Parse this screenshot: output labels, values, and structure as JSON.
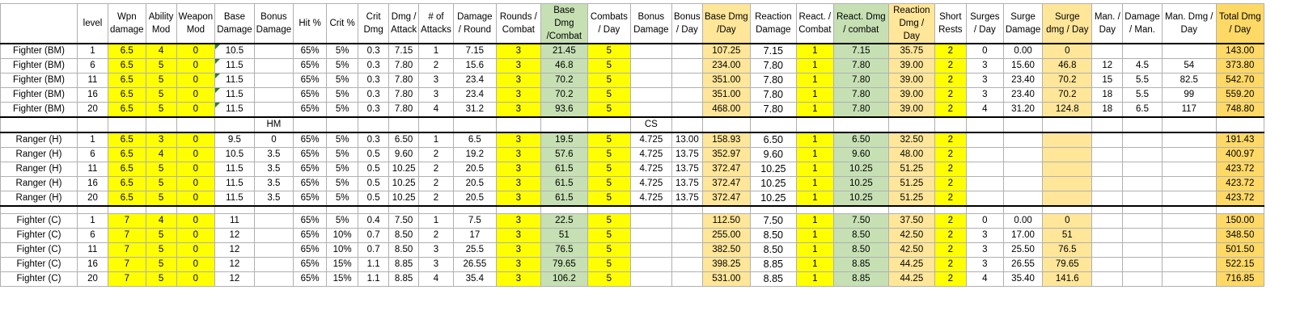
{
  "headers": [
    "",
    "level",
    "Wpn damage",
    "Ability Mod",
    "Weapon Mod",
    "Base Damage",
    "Bonus Damage",
    "Hit %",
    "Crit %",
    "Crit Dmg",
    "Dmg / Attack",
    "# of Attacks",
    "Damage / Round",
    "Rounds / Combat",
    "Base Dmg /Combat",
    "Combats / Day",
    "Bonus Damage",
    "Bonus / Day",
    "Base Dmg /Day",
    "Reaction Damage",
    "React. / Combat",
    "React. Dmg / combat",
    "Reaction Dmg / Day",
    "Short Rests",
    "Surges / Day",
    "Surge Damage",
    "Surge dmg / Day",
    "Man. / Day",
    "Damage / Man.",
    "Man. Dmg / Day",
    "Total Dmg / Day"
  ],
  "colors": {
    "yellow": "#ffff00",
    "green": "#c6e0b4",
    "orange": "#ffe699",
    "gold": "#ffd966"
  },
  "fighter_bm": [
    [
      "Fighter (BM)",
      "1",
      "6.5",
      "4",
      "0",
      "10.5",
      "",
      "65%",
      "5%",
      "0.3",
      "7.15",
      "1",
      "7.15",
      "3",
      "21.45",
      "5",
      "",
      "",
      "107.25",
      "7.15",
      "1",
      "7.15",
      "35.75",
      "2",
      "0",
      "0.00",
      "0",
      "",
      "",
      "",
      "143.00"
    ],
    [
      "Fighter (BM)",
      "6",
      "6.5",
      "5",
      "0",
      "11.5",
      "",
      "65%",
      "5%",
      "0.3",
      "7.80",
      "2",
      "15.6",
      "3",
      "46.8",
      "5",
      "",
      "",
      "234.00",
      "7.80",
      "1",
      "7.80",
      "39.00",
      "2",
      "3",
      "15.60",
      "46.8",
      "12",
      "4.5",
      "54",
      "373.80"
    ],
    [
      "Fighter (BM)",
      "11",
      "6.5",
      "5",
      "0",
      "11.5",
      "",
      "65%",
      "5%",
      "0.3",
      "7.80",
      "3",
      "23.4",
      "3",
      "70.2",
      "5",
      "",
      "",
      "351.00",
      "7.80",
      "1",
      "7.80",
      "39.00",
      "2",
      "3",
      "23.40",
      "70.2",
      "15",
      "5.5",
      "82.5",
      "542.70"
    ],
    [
      "Fighter (BM)",
      "16",
      "6.5",
      "5",
      "0",
      "11.5",
      "",
      "65%",
      "5%",
      "0.3",
      "7.80",
      "3",
      "23.4",
      "3",
      "70.2",
      "5",
      "",
      "",
      "351.00",
      "7.80",
      "1",
      "7.80",
      "39.00",
      "2",
      "3",
      "23.40",
      "70.2",
      "18",
      "5.5",
      "99",
      "559.20"
    ],
    [
      "Fighter (BM)",
      "20",
      "6.5",
      "5",
      "0",
      "11.5",
      "",
      "65%",
      "5%",
      "0.3",
      "7.80",
      "4",
      "31.2",
      "3",
      "93.6",
      "5",
      "",
      "",
      "468.00",
      "7.80",
      "1",
      "7.80",
      "39.00",
      "2",
      "4",
      "31.20",
      "124.8",
      "18",
      "6.5",
      "117",
      "748.80"
    ]
  ],
  "sep_labels": {
    "hm": "HM",
    "cs": "CS"
  },
  "ranger_h": [
    [
      "Ranger (H)",
      "1",
      "6.5",
      "3",
      "0",
      "9.5",
      "0",
      "65%",
      "5%",
      "0.3",
      "6.50",
      "1",
      "6.5",
      "3",
      "19.5",
      "5",
      "4.725",
      "13.00",
      "158.93",
      "6.50",
      "1",
      "6.50",
      "32.50",
      "2",
      "",
      "",
      "",
      "",
      "",
      "",
      "191.43"
    ],
    [
      "Ranger (H)",
      "6",
      "6.5",
      "4",
      "0",
      "10.5",
      "3.5",
      "65%",
      "5%",
      "0.5",
      "9.60",
      "2",
      "19.2",
      "3",
      "57.6",
      "5",
      "4.725",
      "13.75",
      "352.97",
      "9.60",
      "1",
      "9.60",
      "48.00",
      "2",
      "",
      "",
      "",
      "",
      "",
      "",
      "400.97"
    ],
    [
      "Ranger (H)",
      "11",
      "6.5",
      "5",
      "0",
      "11.5",
      "3.5",
      "65%",
      "5%",
      "0.5",
      "10.25",
      "2",
      "20.5",
      "3",
      "61.5",
      "5",
      "4.725",
      "13.75",
      "372.47",
      "10.25",
      "1",
      "10.25",
      "51.25",
      "2",
      "",
      "",
      "",
      "",
      "",
      "",
      "423.72"
    ],
    [
      "Ranger (H)",
      "16",
      "6.5",
      "5",
      "0",
      "11.5",
      "3.5",
      "65%",
      "5%",
      "0.5",
      "10.25",
      "2",
      "20.5",
      "3",
      "61.5",
      "5",
      "4.725",
      "13.75",
      "372.47",
      "10.25",
      "1",
      "10.25",
      "51.25",
      "2",
      "",
      "",
      "",
      "",
      "",
      "",
      "423.72"
    ],
    [
      "Ranger (H)",
      "20",
      "6.5",
      "5",
      "0",
      "11.5",
      "3.5",
      "65%",
      "5%",
      "0.5",
      "10.25",
      "2",
      "20.5",
      "3",
      "61.5",
      "5",
      "4.725",
      "13.75",
      "372.47",
      "10.25",
      "1",
      "10.25",
      "51.25",
      "2",
      "",
      "",
      "",
      "",
      "",
      "",
      "423.72"
    ]
  ],
  "fighter_c": [
    [
      "Fighter (C)",
      "1",
      "7",
      "4",
      "0",
      "11",
      "",
      "65%",
      "5%",
      "0.4",
      "7.50",
      "1",
      "7.5",
      "3",
      "22.5",
      "5",
      "",
      "",
      "112.50",
      "7.50",
      "1",
      "7.50",
      "37.50",
      "2",
      "0",
      "0.00",
      "0",
      "",
      "",
      "",
      "150.00"
    ],
    [
      "Fighter (C)",
      "6",
      "7",
      "5",
      "0",
      "12",
      "",
      "65%",
      "10%",
      "0.7",
      "8.50",
      "2",
      "17",
      "3",
      "51",
      "5",
      "",
      "",
      "255.00",
      "8.50",
      "1",
      "8.50",
      "42.50",
      "2",
      "3",
      "17.00",
      "51",
      "",
      "",
      "",
      "348.50"
    ],
    [
      "Fighter (C)",
      "11",
      "7",
      "5",
      "0",
      "12",
      "",
      "65%",
      "10%",
      "0.7",
      "8.50",
      "3",
      "25.5",
      "3",
      "76.5",
      "5",
      "",
      "",
      "382.50",
      "8.50",
      "1",
      "8.50",
      "42.50",
      "2",
      "3",
      "25.50",
      "76.5",
      "",
      "",
      "",
      "501.50"
    ],
    [
      "Fighter (C)",
      "16",
      "7",
      "5",
      "0",
      "12",
      "",
      "65%",
      "15%",
      "1.1",
      "8.85",
      "3",
      "26.55",
      "3",
      "79.65",
      "5",
      "",
      "",
      "398.25",
      "8.85",
      "1",
      "8.85",
      "44.25",
      "2",
      "3",
      "26.55",
      "79.65",
      "",
      "",
      "",
      "522.15"
    ],
    [
      "Fighter (C)",
      "20",
      "7",
      "5",
      "0",
      "12",
      "",
      "65%",
      "15%",
      "1.1",
      "8.85",
      "4",
      "35.4",
      "3",
      "106.2",
      "5",
      "",
      "",
      "531.00",
      "8.85",
      "1",
      "8.85",
      "44.25",
      "2",
      "4",
      "35.40",
      "141.6",
      "",
      "",
      "",
      "716.85"
    ]
  ]
}
